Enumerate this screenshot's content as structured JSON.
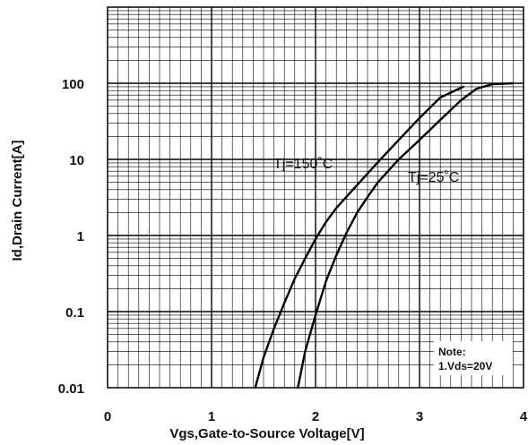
{
  "chart_data": {
    "type": "line",
    "xlabel": "Vgs,Gate-to-Source  Voltage[V]",
    "ylabel": "Id,Drain Current[A]",
    "xlim": [
      0,
      4
    ],
    "ylim": [
      0.01,
      1000
    ],
    "yscale": "log",
    "grid": true,
    "x_ticks": [
      {
        "value": 0,
        "label": "0"
      },
      {
        "value": 1,
        "label": "1"
      },
      {
        "value": 2,
        "label": "2"
      },
      {
        "value": 3,
        "label": "3"
      },
      {
        "value": 4,
        "label": "4"
      }
    ],
    "y_ticks": [
      {
        "value": 0.01,
        "label": "0.01"
      },
      {
        "value": 0.1,
        "label": "0.1"
      },
      {
        "value": 1,
        "label": "1"
      },
      {
        "value": 10,
        "label": "10"
      },
      {
        "value": 100,
        "label": "100"
      }
    ],
    "series": [
      {
        "name": "Tj=150˚C",
        "x": [
          1.42,
          1.5,
          1.6,
          1.7,
          1.8,
          1.9,
          2.0,
          2.1,
          2.2,
          2.4,
          2.6,
          2.8,
          3.0,
          3.2,
          3.42
        ],
        "y": [
          0.01,
          0.025,
          0.06,
          0.13,
          0.27,
          0.5,
          0.9,
          1.5,
          2.3,
          4.6,
          9.2,
          18,
          35,
          65,
          90
        ]
      },
      {
        "name": "Tj=25˚C",
        "x": [
          1.83,
          1.9,
          2.0,
          2.1,
          2.2,
          2.3,
          2.4,
          2.5,
          2.6,
          2.8,
          3.0,
          3.2,
          3.4,
          3.55,
          3.7,
          3.9
        ],
        "y": [
          0.01,
          0.03,
          0.09,
          0.25,
          0.55,
          1.1,
          2.0,
          3.2,
          5.0,
          10,
          18,
          33,
          60,
          85,
          97,
          100
        ]
      }
    ],
    "annotations": [
      {
        "text": "Tj=150˚C",
        "series": 0
      },
      {
        "text": "Tj=25˚C",
        "series": 1
      },
      {
        "text": "Note:"
      },
      {
        "text": "1.Vds=20V"
      }
    ]
  }
}
